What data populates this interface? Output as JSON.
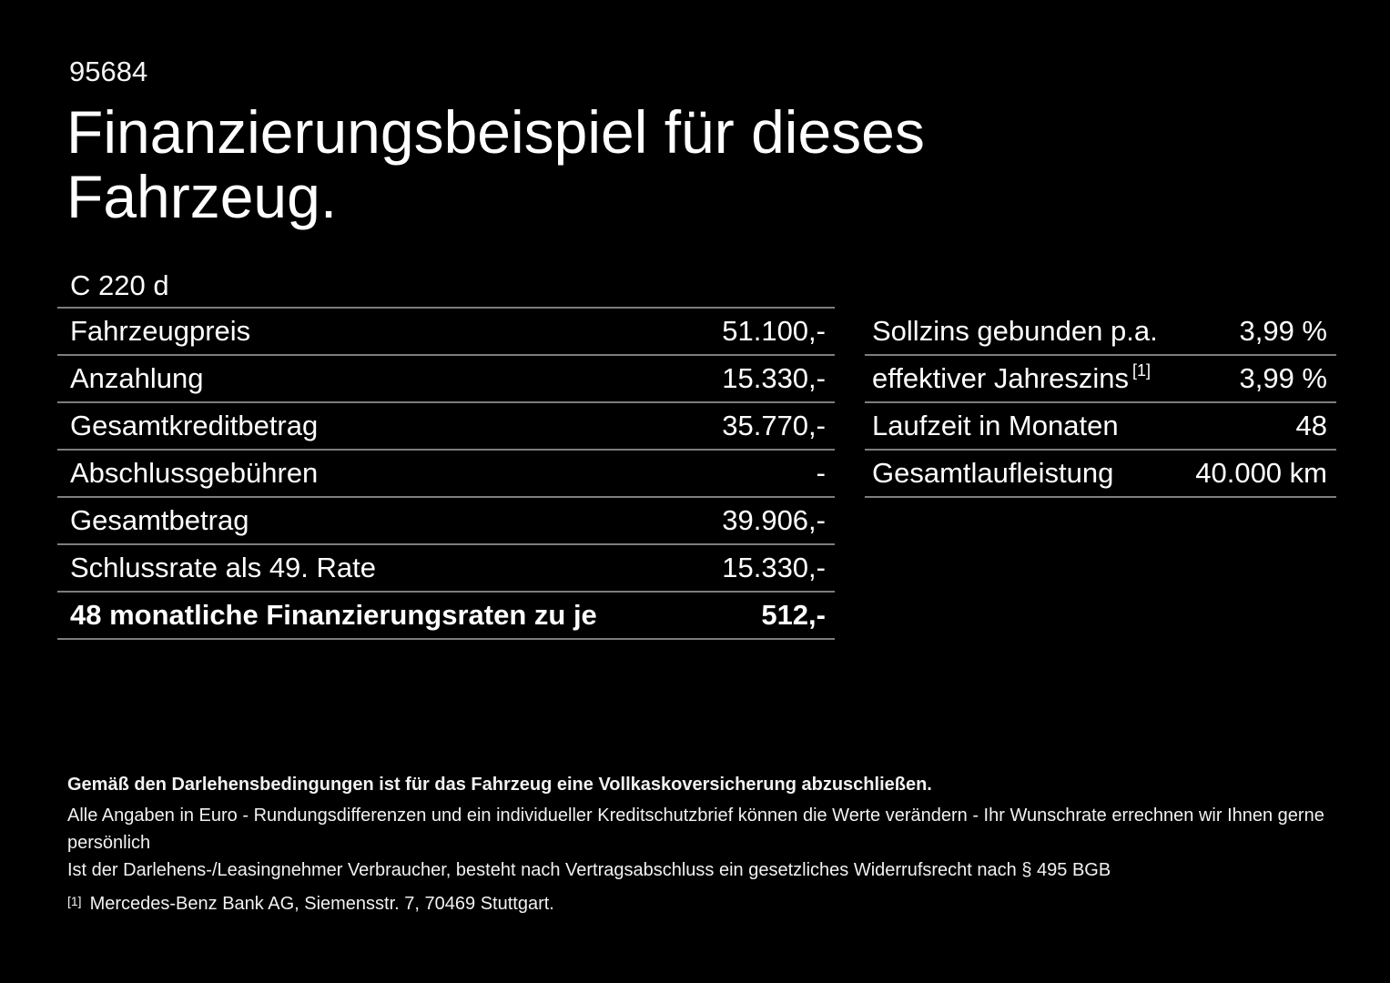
{
  "page": {
    "background_color": "#000000",
    "text_color": "#ffffff",
    "divider_color": "#7d7d7d"
  },
  "header": {
    "doc_number": "95684",
    "title": "Finanzierungsbeispiel für dieses Fahrzeug."
  },
  "vehicle": {
    "model": "C 220 d"
  },
  "finance_table": {
    "rows": [
      {
        "label": "Fahrzeugpreis",
        "value": "51.100,-"
      },
      {
        "label": "Anzahlung",
        "value": "15.330,-"
      },
      {
        "label": "Gesamtkreditbetrag",
        "value": "35.770,-"
      },
      {
        "label": "Abschlussgebühren",
        "value": "-"
      },
      {
        "label": "Gesamtbetrag",
        "value": "39.906,-"
      },
      {
        "label": "Schlussrate als 49. Rate",
        "value": "15.330,-"
      },
      {
        "label": "48 monatliche Finanzierungsraten zu je",
        "value": "512,-"
      }
    ]
  },
  "conditions_table": {
    "rows": [
      {
        "label": "Sollzins gebunden p.a.",
        "sup": "",
        "value": "3,99 %"
      },
      {
        "label": "effektiver Jahreszins",
        "sup": "[1]",
        "value": "3,99 %"
      },
      {
        "label": "Laufzeit in Monaten",
        "sup": "",
        "value": "48"
      },
      {
        "label": "Gesamtlaufleistung",
        "sup": "",
        "value": "40.000 km"
      }
    ]
  },
  "footnotes": {
    "insurance_note": "Gemäß den Darlehensbedingungen ist für das Fahrzeug eine Vollkaskoversicherung abzuschließen.",
    "disclaimer_line1": "Alle Angaben in Euro - Rundungsdifferenzen und ein individueller Kreditschutzbrief können die Werte verändern - Ihr Wunschrate errechnen wir Ihnen gerne persönlich",
    "disclaimer_line2": "Ist der Darlehens-/Leasingnehmer Verbraucher, besteht nach Vertragsabschluss ein gesetzliches Widerrufsrecht nach § 495 BGB",
    "reference_marker": "[1]",
    "reference_text": "Mercedes-Benz Bank AG, Siemensstr. 7, 70469 Stuttgart."
  }
}
